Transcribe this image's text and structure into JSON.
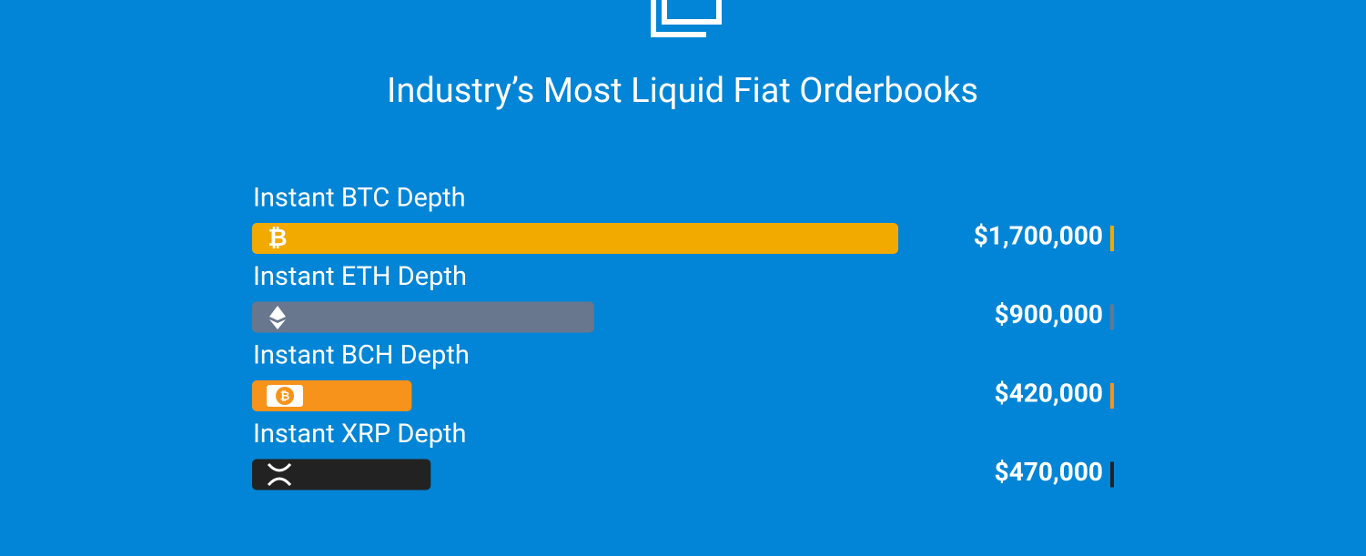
{
  "chart_data": {
    "type": "bar",
    "orientation": "horizontal",
    "title": "Industry’s Most Liquid Fiat Orderbooks",
    "categories": [
      "Instant BTC Depth",
      "Instant ETH Depth",
      "Instant BCH Depth",
      "Instant XRP Depth"
    ],
    "values": [
      1700000,
      900000,
      420000,
      470000
    ],
    "value_labels": [
      "$1,700,000",
      "$900,000",
      "$420,000",
      "$470,000"
    ],
    "colors": [
      "#f2a900",
      "#68778e",
      "#f7931a",
      "#222222"
    ]
  }
}
